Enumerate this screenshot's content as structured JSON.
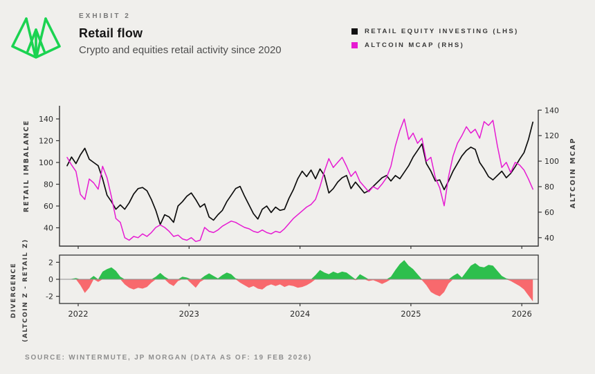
{
  "header": {
    "exhibit_label": "EXHIBIT 2",
    "title": "Retail flow",
    "subtitle": "Crypto and equities retail activity since 2020"
  },
  "legend": {
    "items": [
      {
        "label": "RETAIL EQUITY INVESTING (LHS)",
        "color": "#111111"
      },
      {
        "label": "ALTCOIN MCAP (RHS)",
        "color": "#e61ad2"
      }
    ]
  },
  "source": "SOURCE: WINTERMUTE, JP MORGAN (DATA AS OF: 19 FEB 2026)",
  "colors": {
    "background": "#f0efec",
    "spine": "#333333",
    "tick_text": "#2b2b2b",
    "axis_label_text": "#3e3e3e",
    "retail_line": "#0d0d0d",
    "altcoin_line": "#e61ad2",
    "divergence_positive": "#2dbf4d",
    "divergence_negative": "#f8696d",
    "zero_line": "#8f8f8f",
    "logo_green": "#1bd351"
  },
  "chart_data": {
    "type": "line",
    "x_start": 2021.9,
    "x_step": 0.04,
    "x_end": 2026.1,
    "x_axis": {
      "years": [
        2022,
        2023,
        2024,
        2025,
        2026
      ],
      "tick_labels": [
        "2022",
        "2023",
        "2024",
        "2025",
        "2026"
      ]
    },
    "main": {
      "left_axis": {
        "label": "RETAIL IMBALANCE",
        "ticks": [
          40,
          60,
          80,
          100,
          120,
          140
        ],
        "range": [
          23,
          152
        ]
      },
      "right_axis": {
        "label": "ALTCOIN MCAP",
        "ticks": [
          40,
          60,
          80,
          100,
          120,
          140
        ],
        "range": [
          33,
          143
        ]
      },
      "series": [
        {
          "name": "RETAIL EQUITY INVESTING (LHS)",
          "axis": "left",
          "color": "#0d0d0d",
          "values": [
            97,
            105,
            99,
            107,
            113,
            103,
            100,
            97,
            85,
            70,
            64,
            57,
            61,
            57,
            63,
            71,
            76,
            77,
            74,
            66,
            56,
            43,
            52,
            50,
            45,
            60,
            64,
            69,
            72,
            66,
            59,
            62,
            50,
            47,
            52,
            56,
            64,
            70,
            76,
            78,
            69,
            61,
            53,
            48,
            57,
            60,
            54,
            59,
            56,
            57,
            67,
            75,
            85,
            92,
            87,
            93,
            85,
            94,
            88,
            72,
            76,
            82,
            86,
            88,
            76,
            82,
            77,
            72,
            74,
            78,
            82,
            86,
            88,
            83,
            88,
            85,
            91,
            97,
            105,
            111,
            117,
            99,
            92,
            83,
            84,
            75,
            83,
            92,
            99,
            106,
            111,
            114,
            112,
            100,
            94,
            87,
            84,
            88,
            92,
            86,
            90,
            96,
            103,
            109,
            121,
            137
          ]
        },
        {
          "name": "ALTCOIN MCAP (RHS)",
          "axis": "right",
          "color": "#e61ad2",
          "values": [
            103,
            97,
            92,
            74,
            70,
            86,
            83,
            78,
            96,
            87,
            72,
            55,
            52,
            40,
            38,
            41,
            40,
            43,
            41,
            44,
            48,
            50,
            48,
            45,
            41,
            42,
            39,
            38,
            40,
            37,
            38,
            48,
            45,
            44,
            46,
            49,
            51,
            53,
            52,
            50,
            48,
            47,
            45,
            44,
            46,
            44,
            43,
            45,
            44,
            47,
            51,
            55,
            58,
            61,
            64,
            66,
            70,
            80,
            92,
            102,
            95,
            99,
            103,
            96,
            88,
            92,
            84,
            80,
            76,
            80,
            78,
            82,
            87,
            96,
            112,
            124,
            133,
            117,
            122,
            114,
            118,
            100,
            103,
            87,
            79,
            65,
            88,
            104,
            114,
            120,
            127,
            122,
            125,
            118,
            131,
            128,
            132,
            112,
            95,
            99,
            91,
            99,
            97,
            93,
            86,
            78
          ]
        }
      ]
    },
    "divergence": {
      "axis_label_line1": "DIVERGENCE",
      "axis_label_line2": "(ALTCOIN Z - RETAIL Z)",
      "ticks": [
        2,
        0,
        -2
      ],
      "range": [
        -2.9,
        2.9
      ],
      "positive_color": "#2dbf4d",
      "negative_color": "#f8696d",
      "values": [
        0,
        0.05,
        0.15,
        -0.7,
        -1.6,
        -1,
        0.4,
        -0.3,
        0.9,
        1.2,
        1.4,
        1,
        0.3,
        -0.6,
        -1,
        -1.2,
        -1,
        -1.1,
        -0.9,
        -0.4,
        0.3,
        0.75,
        0.3,
        -0.5,
        -0.8,
        -0.2,
        0.3,
        0.2,
        -0.5,
        -1,
        -0.3,
        0.4,
        0.7,
        0.4,
        0.1,
        0.5,
        0.8,
        0.6,
        0.1,
        -0.4,
        -0.7,
        -1,
        -0.8,
        -1.1,
        -1.2,
        -0.8,
        -0.6,
        -0.8,
        -0.6,
        -0.9,
        -0.7,
        -0.8,
        -1,
        -0.9,
        -0.7,
        -0.4,
        0.5,
        1.1,
        0.8,
        0.6,
        0.9,
        0.7,
        0.9,
        0.8,
        0.4,
        -0.1,
        0.6,
        0.3,
        -0.2,
        -0.1,
        -0.3,
        -0.55,
        -0.3,
        0.3,
        1.1,
        1.8,
        2.25,
        1.6,
        1.2,
        0.6,
        -0.1,
        -0.7,
        -1.5,
        -1.8,
        -2,
        -1.5,
        -0.5,
        0.4,
        0.7,
        0.2,
        0.9,
        1.6,
        1.9,
        1.5,
        1.4,
        1.7,
        1.6,
        1,
        0.4,
        0.1,
        -0.2,
        -0.5,
        -0.8,
        -1.2,
        -1.9,
        -2.6
      ]
    }
  }
}
